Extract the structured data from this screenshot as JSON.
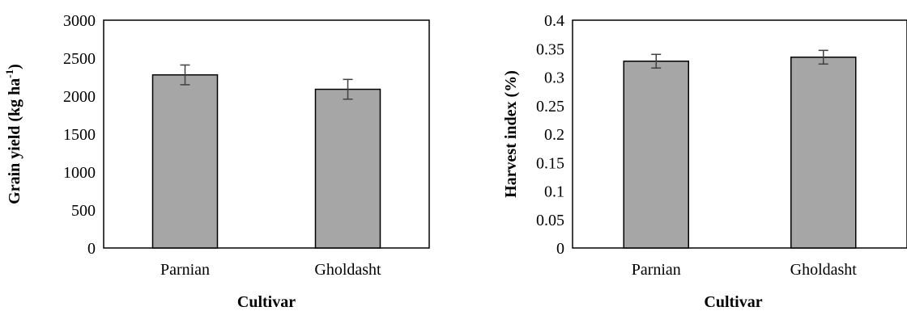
{
  "chart_data": [
    {
      "type": "bar",
      "categories": [
        "Parnian",
        "Gholdasht"
      ],
      "values": [
        2280,
        2090
      ],
      "errors": [
        130,
        130
      ],
      "xlabel": "Cultivar",
      "ylabel_main": "Grain yield (kg ha",
      "ylabel_sup": "-1",
      "ylabel_end": ")",
      "ylim": [
        0,
        3000
      ],
      "yticks": [
        "0",
        "500",
        "1000",
        "1500",
        "2000",
        "2500",
        "3000"
      ],
      "bar_color": "#a6a6a6",
      "grid": false
    },
    {
      "type": "bar",
      "categories": [
        "Parnian",
        "Gholdasht"
      ],
      "values": [
        0.328,
        0.335
      ],
      "errors": [
        0.012,
        0.012
      ],
      "xlabel": "Cultivar",
      "ylabel_main": "Harvest index (%)",
      "ylabel_sup": "",
      "ylabel_end": "",
      "ylim": [
        0,
        0.4
      ],
      "yticks": [
        "0",
        "0.05",
        "0.1",
        "0.15",
        "0.2",
        "0.25",
        "0.3",
        "0.35",
        "0.4"
      ],
      "bar_color": "#a6a6a6",
      "grid": false
    }
  ]
}
